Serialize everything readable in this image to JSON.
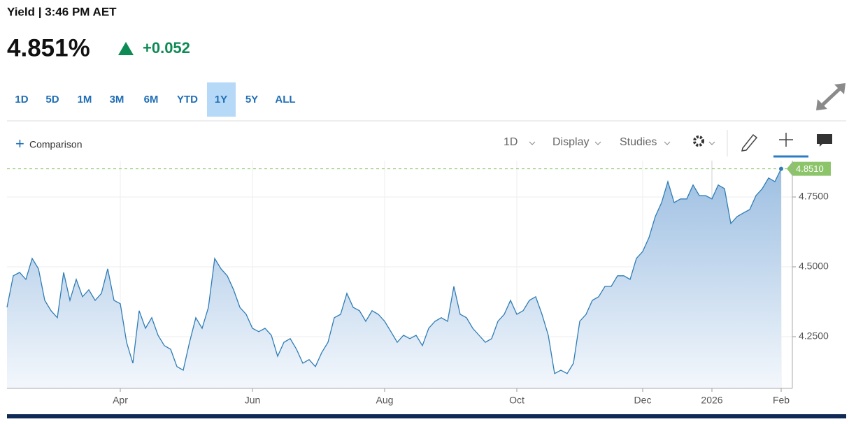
{
  "header": {
    "title": "Yield | 3:46 PM AET",
    "price": "4.851%",
    "change": "+0.052"
  },
  "ranges": {
    "items": [
      "1D",
      "5D",
      "1M",
      "3M",
      "6M",
      "YTD",
      "1Y",
      "5Y",
      "ALL"
    ],
    "active": "1Y"
  },
  "toolbar": {
    "comparison": "Comparison",
    "interval": "1D",
    "display": "Display",
    "studies": "Studies"
  },
  "chart_data": {
    "type": "area",
    "categories": [
      null,
      null,
      null,
      null,
      null,
      null,
      null,
      null,
      null,
      null,
      null,
      null,
      null,
      null,
      null,
      null,
      null,
      null,
      "Apr",
      null,
      null,
      null,
      null,
      null,
      null,
      null,
      null,
      null,
      null,
      null,
      null,
      null,
      null,
      null,
      null,
      null,
      null,
      null,
      null,
      "Jun",
      null,
      null,
      null,
      null,
      null,
      null,
      null,
      null,
      null,
      null,
      null,
      null,
      null,
      null,
      null,
      null,
      null,
      null,
      null,
      null,
      "Aug",
      null,
      null,
      null,
      null,
      null,
      null,
      null,
      null,
      null,
      null,
      null,
      null,
      null,
      null,
      null,
      null,
      null,
      null,
      null,
      null,
      "Oct",
      null,
      null,
      null,
      null,
      null,
      null,
      null,
      null,
      null,
      null,
      null,
      null,
      null,
      null,
      null,
      null,
      null,
      null,
      null,
      "Dec",
      null,
      null,
      null,
      null,
      null,
      null,
      null,
      null,
      null,
      null,
      "2026",
      null,
      null,
      null,
      null,
      null,
      null,
      null,
      null,
      null,
      null,
      "Feb"
    ],
    "values": [
      4.355,
      4.468,
      4.48,
      4.455,
      4.53,
      4.493,
      4.38,
      4.343,
      4.318,
      4.48,
      4.38,
      4.455,
      4.393,
      4.418,
      4.38,
      4.405,
      4.493,
      4.38,
      4.368,
      4.23,
      4.155,
      4.343,
      4.28,
      4.318,
      4.255,
      4.218,
      4.205,
      4.143,
      4.13,
      4.23,
      4.318,
      4.28,
      4.355,
      4.53,
      4.493,
      4.468,
      4.418,
      4.355,
      4.33,
      4.28,
      4.268,
      4.28,
      4.255,
      4.18,
      4.23,
      4.243,
      4.205,
      4.155,
      4.168,
      4.143,
      4.193,
      4.23,
      4.318,
      4.33,
      4.405,
      4.355,
      4.343,
      4.305,
      4.343,
      4.33,
      4.305,
      4.268,
      4.23,
      4.255,
      4.243,
      4.255,
      4.218,
      4.28,
      4.305,
      4.318,
      4.305,
      4.43,
      4.33,
      4.318,
      4.28,
      4.255,
      4.23,
      4.243,
      4.305,
      4.33,
      4.38,
      4.33,
      4.343,
      4.38,
      4.393,
      4.33,
      4.255,
      4.118,
      4.13,
      4.118,
      4.155,
      4.305,
      4.33,
      4.38,
      4.393,
      4.43,
      4.43,
      4.468,
      4.468,
      4.455,
      4.53,
      4.555,
      4.605,
      4.68,
      4.73,
      4.805,
      4.73,
      4.743,
      4.743,
      4.793,
      4.755,
      4.755,
      4.743,
      4.793,
      4.78,
      4.655,
      4.68,
      4.693,
      4.705,
      4.755,
      4.78,
      4.818,
      4.805,
      4.851
    ],
    "color": "#2f7db5",
    "ylim": [
      4.065,
      4.88
    ],
    "yticks": [
      {
        "value": 4.25,
        "label": "4.2500"
      },
      {
        "value": 4.5,
        "label": "4.5000"
      },
      {
        "value": 4.75,
        "label": "4.7500"
      }
    ],
    "reference_line": {
      "value": 4.851,
      "label": "4.8510",
      "color": "#8cc46a"
    },
    "grid": true
  }
}
